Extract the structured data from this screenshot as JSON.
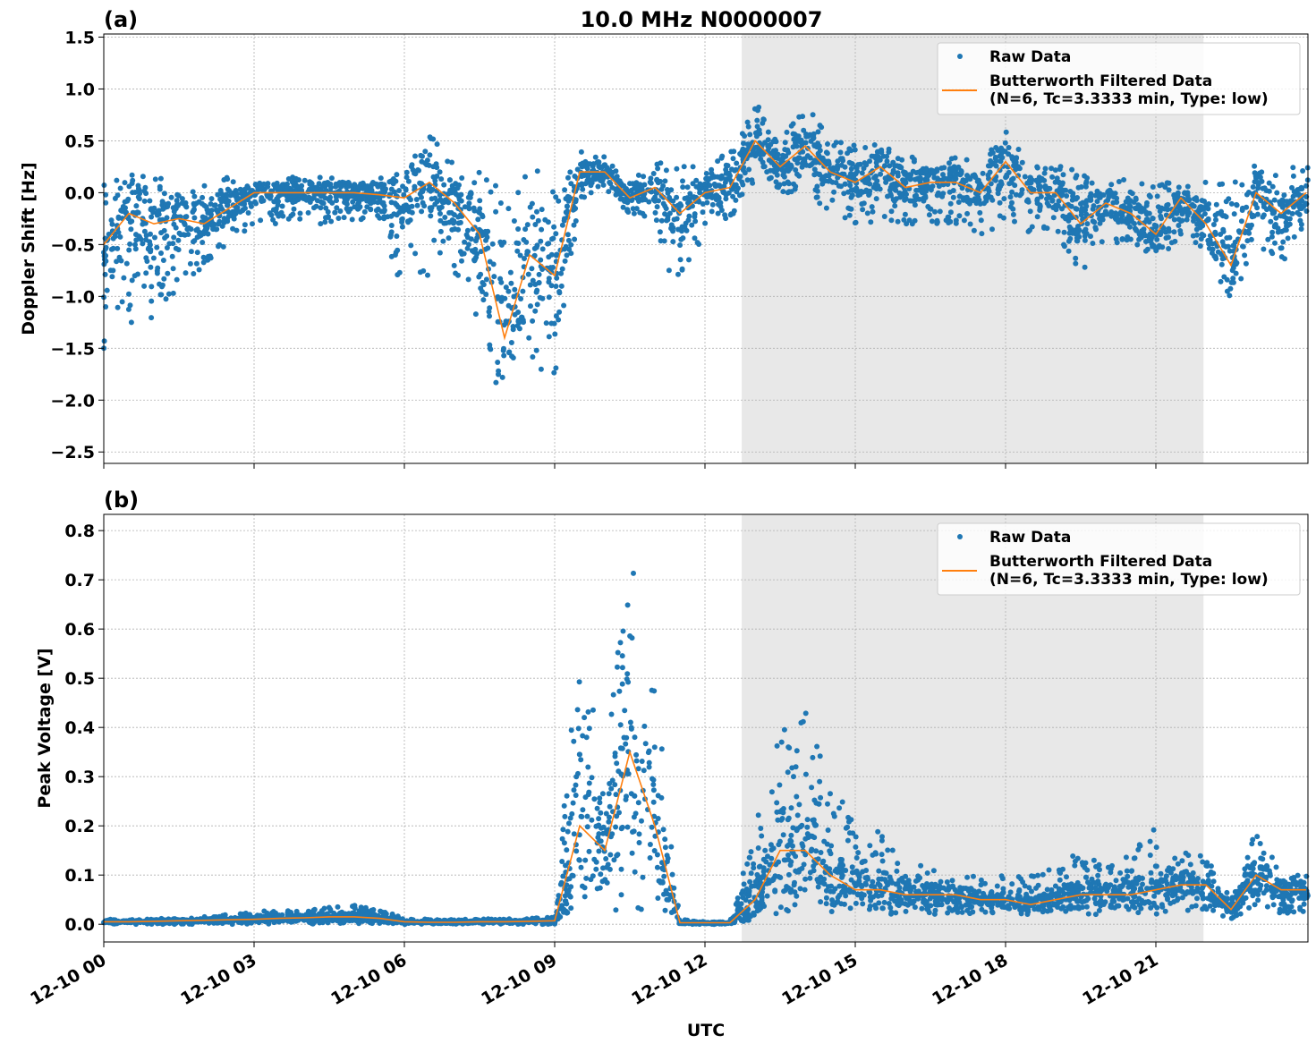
{
  "chart_data": [
    {
      "type": "scatter",
      "panel_label": "(a)",
      "title": "10.0 MHz N0000007",
      "xlabel": "",
      "ylabel": "Doppler Shift [Hz]",
      "ylim": [
        -2.61,
        1.53
      ],
      "yticks": [
        "1.5",
        "1.0",
        "0.5",
        "0.0",
        "−0.5",
        "−1.0",
        "−1.5",
        "−2.0",
        "−2.5"
      ],
      "ytick_values": [
        1.5,
        1.0,
        0.5,
        0.0,
        -0.5,
        -1.0,
        -1.5,
        -2.0,
        -2.5
      ],
      "grid": true,
      "legend_position": "top-right",
      "shaded_interval": [
        "12-10 12:44",
        "12-10 21:57"
      ],
      "x": [
        "00:00",
        "00:30",
        "01:00",
        "01:30",
        "02:00",
        "02:30",
        "03:00",
        "03:30",
        "04:00",
        "04:30",
        "05:00",
        "05:30",
        "06:00",
        "06:30",
        "07:00",
        "07:30",
        "08:00",
        "08:30",
        "09:00",
        "09:30",
        "10:00",
        "10:30",
        "11:00",
        "11:30",
        "12:00",
        "12:30",
        "13:00",
        "13:30",
        "14:00",
        "14:30",
        "15:00",
        "15:30",
        "16:00",
        "16:30",
        "17:00",
        "17:30",
        "18:00",
        "18:30",
        "19:00",
        "19:30",
        "20:00",
        "20:30",
        "21:00",
        "21:30",
        "22:00",
        "22:30",
        "23:00",
        "23:30",
        "24:00"
      ],
      "series": [
        {
          "name": "Raw Data",
          "kind": "scatter",
          "color": "#1f77b4",
          "low": [
            -1.5,
            -1.4,
            -1.2,
            -1.0,
            -0.7,
            -0.5,
            -0.3,
            -0.3,
            -0.3,
            -0.3,
            -0.3,
            -0.3,
            -1.0,
            -0.8,
            -0.8,
            -1.3,
            -2.2,
            -1.8,
            -2.0,
            -0.2,
            0.0,
            -0.2,
            -0.3,
            -1.1,
            -0.3,
            -0.3,
            0.1,
            0.0,
            0.0,
            -0.2,
            -0.3,
            -0.3,
            -0.3,
            -0.3,
            -0.3,
            -0.4,
            -0.3,
            -0.4,
            -0.4,
            -0.8,
            -0.5,
            -0.5,
            -0.7,
            -0.4,
            -0.6,
            -1.1,
            -0.5,
            -0.7,
            -0.3
          ],
          "high": [
            0.2,
            0.2,
            0.15,
            0.1,
            0.15,
            0.15,
            0.1,
            0.15,
            0.15,
            0.15,
            0.15,
            0.15,
            0.2,
            0.6,
            0.4,
            0.2,
            0.0,
            0.3,
            0.2,
            0.4,
            0.35,
            0.1,
            0.3,
            0.3,
            0.3,
            0.4,
            0.9,
            0.5,
            0.9,
            0.5,
            0.5,
            0.5,
            0.35,
            0.35,
            0.35,
            0.3,
            0.6,
            0.3,
            0.3,
            0.2,
            0.2,
            0.1,
            0.1,
            0.1,
            0.1,
            0.1,
            0.3,
            0.2,
            0.3
          ]
        },
        {
          "name": "Butterworth Filtered Data\n(N=6, Tc=3.3333 min, Type: low)",
          "kind": "line",
          "color": "#ff7f0e",
          "values": [
            -0.5,
            -0.2,
            -0.3,
            -0.25,
            -0.3,
            -0.15,
            0.0,
            0.0,
            0.0,
            0.0,
            0.0,
            -0.02,
            -0.05,
            0.1,
            -0.1,
            -0.4,
            -1.4,
            -0.6,
            -0.8,
            0.2,
            0.2,
            -0.05,
            0.05,
            -0.2,
            0.0,
            0.05,
            0.5,
            0.25,
            0.45,
            0.2,
            0.1,
            0.25,
            0.05,
            0.1,
            0.1,
            0.0,
            0.3,
            0.0,
            0.0,
            -0.3,
            -0.1,
            -0.2,
            -0.4,
            -0.05,
            -0.3,
            -0.7,
            0.0,
            -0.2,
            0.0
          ]
        }
      ]
    },
    {
      "type": "scatter",
      "panel_label": "(b)",
      "title": "",
      "xlabel": "UTC",
      "ylabel": "Peak Voltage [V]",
      "ylim": [
        -0.036,
        0.833
      ],
      "yticks": [
        "0.8",
        "0.7",
        "0.6",
        "0.5",
        "0.4",
        "0.3",
        "0.2",
        "0.1",
        "0.0"
      ],
      "ytick_values": [
        0.8,
        0.7,
        0.6,
        0.5,
        0.4,
        0.3,
        0.2,
        0.1,
        0.0
      ],
      "xticks": [
        "12-10 00",
        "12-10 03",
        "12-10 06",
        "12-10 09",
        "12-10 12",
        "12-10 15",
        "12-10 18",
        "12-10 21"
      ],
      "grid": true,
      "legend_position": "top-right",
      "shaded_interval": [
        "12-10 12:44",
        "12-10 21:57"
      ],
      "x": [
        "00:00",
        "00:30",
        "01:00",
        "01:30",
        "02:00",
        "02:30",
        "03:00",
        "03:30",
        "04:00",
        "04:30",
        "05:00",
        "05:30",
        "06:00",
        "06:30",
        "07:00",
        "07:30",
        "08:00",
        "08:30",
        "09:00",
        "09:30",
        "10:00",
        "10:30",
        "11:00",
        "11:30",
        "12:00",
        "12:30",
        "13:00",
        "13:30",
        "14:00",
        "14:30",
        "15:00",
        "15:30",
        "16:00",
        "16:30",
        "17:00",
        "17:30",
        "18:00",
        "18:30",
        "19:00",
        "19:30",
        "20:00",
        "20:30",
        "21:00",
        "21:30",
        "22:00",
        "22:30",
        "23:00",
        "23:30",
        "24:00"
      ],
      "series": [
        {
          "name": "Raw Data",
          "kind": "scatter",
          "color": "#1f77b4",
          "low": [
            0,
            0,
            0,
            0,
            0,
            0,
            0,
            0,
            0,
            0,
            0,
            0,
            0,
            0,
            0,
            0,
            0,
            0,
            0,
            0.02,
            0.02,
            0.02,
            0.02,
            0,
            0,
            0,
            0.01,
            0.02,
            0.02,
            0.02,
            0.02,
            0.02,
            0.02,
            0.02,
            0.02,
            0.02,
            0.02,
            0.02,
            0.02,
            0.02,
            0.02,
            0.02,
            0.02,
            0.02,
            0.02,
            0.01,
            0.02,
            0.02,
            0.02
          ],
          "high": [
            0.01,
            0.01,
            0.012,
            0.012,
            0.015,
            0.02,
            0.025,
            0.03,
            0.03,
            0.035,
            0.04,
            0.03,
            0.012,
            0.01,
            0.01,
            0.01,
            0.012,
            0.012,
            0.015,
            0.7,
            0.35,
            0.75,
            0.5,
            0.01,
            0.005,
            0.005,
            0.2,
            0.4,
            0.45,
            0.3,
            0.2,
            0.2,
            0.12,
            0.12,
            0.1,
            0.1,
            0.1,
            0.1,
            0.12,
            0.15,
            0.12,
            0.15,
            0.2,
            0.15,
            0.15,
            0.05,
            0.2,
            0.1,
            0.1
          ]
        },
        {
          "name": "Butterworth Filtered Data\n(N=6, Tc=3.3333 min, Type: low)",
          "kind": "line",
          "color": "#ff7f0e",
          "values": [
            0.005,
            0.005,
            0.006,
            0.007,
            0.008,
            0.009,
            0.01,
            0.012,
            0.013,
            0.015,
            0.015,
            0.012,
            0.005,
            0.004,
            0.004,
            0.005,
            0.005,
            0.006,
            0.007,
            0.2,
            0.15,
            0.35,
            0.2,
            0.003,
            0.003,
            0.003,
            0.05,
            0.15,
            0.15,
            0.1,
            0.07,
            0.07,
            0.06,
            0.06,
            0.06,
            0.05,
            0.05,
            0.04,
            0.05,
            0.06,
            0.06,
            0.06,
            0.07,
            0.08,
            0.08,
            0.03,
            0.1,
            0.07,
            0.07
          ]
        }
      ]
    }
  ]
}
